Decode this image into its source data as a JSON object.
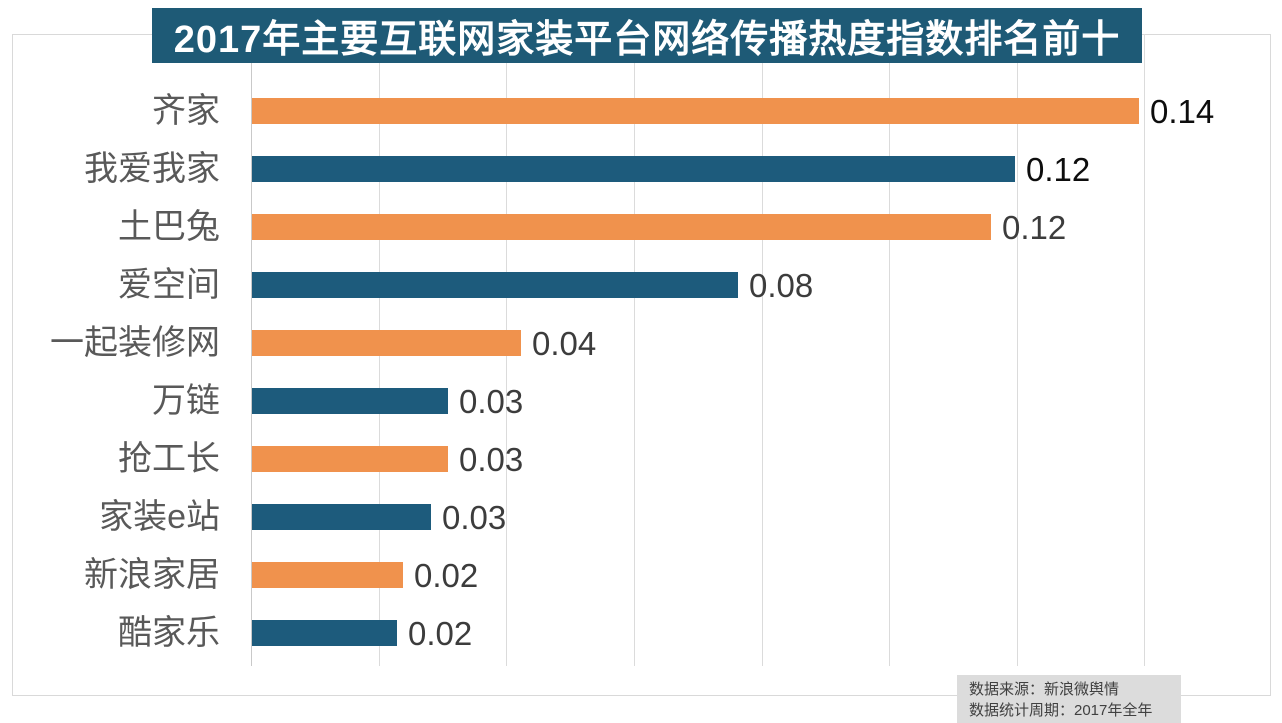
{
  "title": {
    "text": "2017年主要互联网家装平台网络传播热度指数排名前十",
    "bg_color": "#1E5A76",
    "text_color": "#FFFFFF"
  },
  "source_box": {
    "lines": [
      "数据来源：新浪微舆情",
      "数据统计周期：2017年全年"
    ],
    "bg_color": "#DCDCDC",
    "text_color": "#404040"
  },
  "palette": {
    "orange_bar": "#F0924D",
    "blue_bar": "#1D5B7C",
    "gridline": "#DBDBDB",
    "axis_line": "#C9C9C9",
    "plot_border": "#D9D9D9",
    "category_label": "#595959"
  },
  "chart_data": {
    "type": "bar",
    "orientation": "horizontal",
    "title": "2017年主要互联网家装平台网络传播热度指数排名前十",
    "categories": [
      "齐家",
      "我爱我家",
      "土巴兔",
      "爱空间",
      "一起装修网",
      "万链",
      "抢工长",
      "家装e站",
      "新浪家居",
      "酷家乐"
    ],
    "values": [
      0.139,
      0.1195,
      0.1158,
      0.0761,
      0.0422,
      0.0307,
      0.0307,
      0.028,
      0.0236,
      0.0227
    ],
    "data_labels": [
      "0.14",
      "0.12",
      "0.12",
      "0.08",
      "0.04",
      "0.03",
      "0.03",
      "0.03",
      "0.02",
      "0.02"
    ],
    "data_label_colors": [
      "#0D0D0D",
      "#0D0D0D",
      "#3C3C3C",
      "#3C3C3C",
      "#3C3C3C",
      "#3C3C3C",
      "#3C3C3C",
      "#3C3C3C",
      "#3C3C3C",
      "#3C3C3C"
    ],
    "bar_colors": [
      "#F0924D",
      "#1D5B7C",
      "#F0924D",
      "#1D5B7C",
      "#F0924D",
      "#1D5B7C",
      "#F0924D",
      "#1D5B7C",
      "#F0924D",
      "#1D5B7C"
    ],
    "xlabel": "",
    "ylabel": "",
    "xlim": [
      0,
      0.16
    ],
    "grid_step": 0.02,
    "grid": "vertical-lines-no-tick-labels",
    "legend": "none"
  }
}
